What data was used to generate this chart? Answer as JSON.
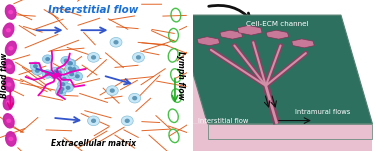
{
  "fig_width": 3.78,
  "fig_height": 1.51,
  "dpi": 100,
  "bg_color": "#ffffff",
  "left_panel": {
    "title": "Interstitial flow",
    "title_color": "#1a6fd4",
    "title_fontsize": 7.5,
    "title_fontweight": "bold",
    "title_fontstyle": "italic",
    "label_extracellular": "Extracellular matrix",
    "label_blood": "Blood flow",
    "label_lymph": "Lymph flow",
    "label_fontsize": 5.5,
    "ecm_fiber_color": "#e05510",
    "blue_arrow_color": "#3355cc",
    "tumor_cell_color": "#a8d8ee",
    "tumor_cell_edge": "#7ab8de",
    "tumor_nucleus_color": "#5590bb",
    "tumor_outline_color": "#ee00bb",
    "single_cell_color": "#c8e8f8",
    "single_cell_edge": "#88c0d8",
    "single_nucleus_color": "#6098b8",
    "blood_cell_color": "#cc22aa",
    "blood_arrow_color": "#dd0088",
    "lymph_cell_color": "#33bb33",
    "lymph_arrow_color": "#22aa22"
  },
  "right_panel": {
    "bg_color": "#2e7060",
    "chip_top_color": "#336858",
    "chip_edge_color": "#558070",
    "chip_bottom_color": "#e8c0d0",
    "hex_fill_dark": "#c87898",
    "hex_fill_light": "#e8b8cc",
    "channel_dark": "#8a4060",
    "channel_light": "#d090a8",
    "text_color": "#ffffff",
    "label_cell_ecm": "Cell-ECM channel",
    "label_interstitial": "Interstitial flow",
    "label_intramural": "Intramural flows",
    "label_fontsize": 5.2
  }
}
